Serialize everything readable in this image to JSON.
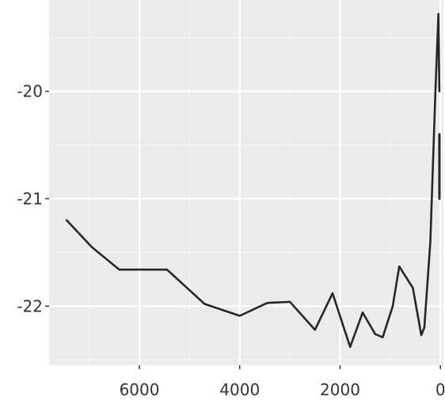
{
  "chart_data": {
    "type": "line",
    "title": "",
    "xlabel": "",
    "ylabel": "",
    "x_reversed": true,
    "xlim": [
      7800,
      -60
    ],
    "ylim": [
      -22.55,
      -19.15
    ],
    "grid": true,
    "legend": "none",
    "x_ticks": [
      {
        "value": 6000,
        "label": "6000"
      },
      {
        "value": 4000,
        "label": "4000"
      },
      {
        "value": 2000,
        "label": "2000"
      },
      {
        "value": 0,
        "label": "0"
      }
    ],
    "y_ticks": [
      {
        "value": -20,
        "label": "-20"
      },
      {
        "value": -21,
        "label": "-21"
      },
      {
        "value": -22,
        "label": "-22"
      }
    ],
    "series": [
      {
        "x": [
          7450,
          6950,
          6400,
          5900,
          5450,
          4700,
          4000,
          3450,
          3000,
          2500,
          2150,
          1800,
          1550,
          1300,
          1150,
          950,
          820,
          550,
          380,
          320,
          200,
          100,
          40,
          20
        ],
        "y": [
          -21.2,
          -21.45,
          -21.66,
          -21.66,
          -21.66,
          -21.98,
          -22.09,
          -21.97,
          -21.96,
          -22.22,
          -21.88,
          -22.38,
          -22.06,
          -22.26,
          -22.29,
          -22.0,
          -21.63,
          -21.83,
          -22.27,
          -22.2,
          -21.4,
          -20.0,
          -19.28,
          -20.0
        ]
      }
    ],
    "segment": {
      "x": 20,
      "y_from": -20.4,
      "y_to": -21.0
    }
  },
  "colors": {
    "panel": "#ebebeb",
    "grid": "#ffffff",
    "line": "#262626",
    "text": "#333333"
  }
}
